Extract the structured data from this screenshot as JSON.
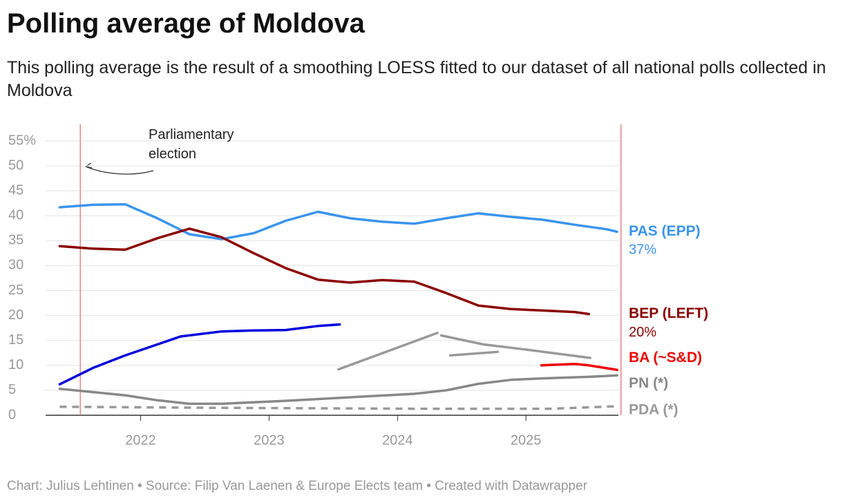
{
  "chart_data": {
    "type": "line",
    "title": "Polling average of Moldova",
    "subtitle": "This polling average is the result of a smoothing LOESS fitted to our dataset of all national polls collected in Moldova",
    "footer": "Chart: Julius Lehtinen • Source: Filip Van Laenen & Europe Elects team • Created with Datawrapper",
    "annotation": "Parliamentary election",
    "markers": [
      2021.53,
      2025.74
    ],
    "xlim": [
      2021.26,
      2025.72
    ],
    "xticks": [
      2022,
      2023,
      2024,
      2025
    ],
    "ylim": [
      0,
      55
    ],
    "yticks": [
      0,
      5,
      10,
      15,
      20,
      25,
      30,
      35,
      40,
      45,
      50,
      {
        "value": 55,
        "label": "55%"
      }
    ],
    "grid": true,
    "series": [
      {
        "name": "PAS (EPP)",
        "color": "#3a94ed",
        "x": [
          2021.37,
          2021.63,
          2021.88,
          2022.13,
          2022.38,
          2022.63,
          2022.88,
          2023.13,
          2023.38,
          2023.63,
          2023.88,
          2024.13,
          2024.38,
          2024.63,
          2024.88,
          2025.13,
          2025.38,
          2025.63,
          2025.71
        ],
        "values": [
          41.7,
          42.2,
          42.3,
          39.5,
          36.3,
          35.3,
          36.5,
          39,
          40.8,
          39.5,
          38.8,
          38.4,
          39.5,
          40.5,
          39.8,
          39.2,
          38.2,
          37.3,
          36.8
        ],
        "value_labels": [
          null,
          null,
          null,
          null,
          null,
          null,
          null,
          null,
          null,
          null,
          null,
          null,
          null,
          null,
          null,
          null,
          null,
          null,
          "37%"
        ]
      },
      {
        "name": "BEP (LEFT)",
        "color": "#8b0000",
        "x": [
          2021.37,
          2021.63,
          2021.88,
          2022.13,
          2022.38,
          2022.63,
          2022.88,
          2023.13,
          2023.38,
          2023.63,
          2023.88,
          2024.13,
          2024.38,
          2024.63,
          2024.88,
          2025.13,
          2025.38,
          2025.49
        ],
        "values": [
          33.9,
          33.4,
          33.2,
          35.5,
          37.4,
          35.7,
          32.5,
          29.5,
          27.2,
          26.6,
          27.1,
          26.8,
          24.5,
          22,
          21.3,
          21,
          20.7,
          20.3
        ],
        "value_labels": [
          null,
          null,
          null,
          null,
          null,
          null,
          null,
          null,
          null,
          null,
          null,
          null,
          null,
          null,
          null,
          null,
          null,
          "20%"
        ]
      },
      {
        "color": "#0000dd",
        "x": [
          2021.37,
          2021.63,
          2021.88,
          2022.13,
          2022.31,
          2022.63,
          2022.88,
          2023.13,
          2023.38,
          2023.55
        ],
        "values": [
          6.2,
          9.5,
          12,
          14.2,
          15.8,
          16.8,
          17,
          17.1,
          17.9,
          18.2
        ]
      },
      {
        "color": "#999999",
        "x": [
          2023.54,
          2024.31
        ],
        "values": [
          9.2,
          16.5
        ]
      },
      {
        "color": "#999999",
        "x": [
          2024.34,
          2024.67,
          2024.99,
          2025.5
        ],
        "values": [
          16,
          14.2,
          13.2,
          11.5
        ]
      },
      {
        "color": "#999999",
        "x": [
          2024.41,
          2024.78
        ],
        "values": [
          12,
          12.7
        ]
      },
      {
        "name": "BA (~S&D)",
        "color": "#ee0000",
        "x": [
          2025.12,
          2025.38,
          2025.49,
          2025.71
        ],
        "values": [
          10,
          10.3,
          10,
          9.1
        ]
      },
      {
        "name": "PN (*)",
        "color": "#888888",
        "x": [
          2021.37,
          2021.88,
          2022.13,
          2022.38,
          2022.63,
          2023.13,
          2023.63,
          2024.13,
          2024.38,
          2024.63,
          2024.88,
          2025.13,
          2025.49,
          2025.71
        ],
        "values": [
          5.3,
          4,
          3,
          2.3,
          2.3,
          2.9,
          3.6,
          4.3,
          5,
          6.3,
          7.1,
          7.4,
          7.7,
          8
        ]
      },
      {
        "name": "PDA (*)",
        "color": "#999999",
        "dash": true,
        "x": [
          2021.37,
          2022.52,
          2024.13,
          2025.2,
          2025.71
        ],
        "values": [
          1.7,
          1.5,
          1.3,
          1.3,
          1.8
        ]
      }
    ]
  }
}
